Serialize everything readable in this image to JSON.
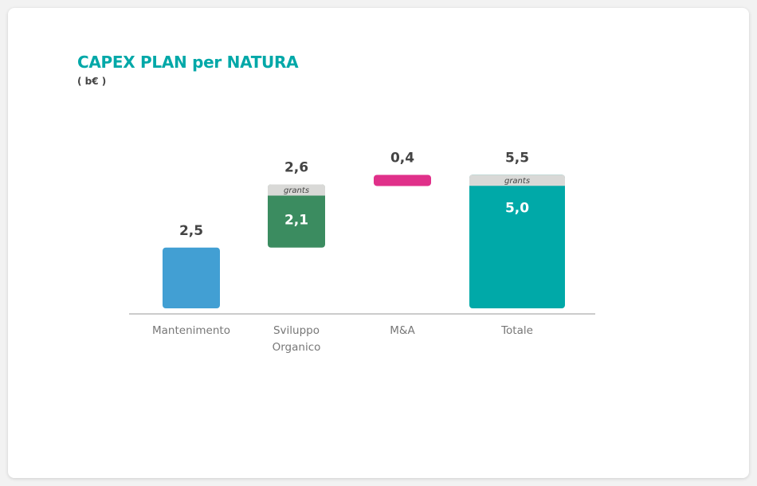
{
  "chart_data": {
    "type": "bar",
    "subtype": "waterfall",
    "title": "CAPEX PLAN per NATURA",
    "unit": "( b€ )",
    "categories": [
      "Mantenimento",
      "Sviluppo Organico",
      "M&A",
      "Totale"
    ],
    "category_lines": [
      [
        "Mantenimento"
      ],
      [
        "Sviluppo",
        "Organico"
      ],
      [
        "M&A"
      ],
      [
        "Totale"
      ]
    ],
    "bars": [
      {
        "category": "Mantenimento",
        "value": 2.5,
        "label": "2,5",
        "color": "#429fd3"
      },
      {
        "category": "Sviluppo Organico",
        "value": 2.6,
        "label": "2,6",
        "inner_value": 2.1,
        "inner_label": "2,1",
        "segment_label": "grants",
        "color": "#3b8c60"
      },
      {
        "category": "M&A",
        "value": 0.4,
        "label": "0,4",
        "color": "#e0308a"
      },
      {
        "category": "Totale",
        "value": 5.5,
        "label": "5,5",
        "inner_value": 5.0,
        "inner_label": "5,0",
        "segment_label": "grants",
        "color": "#00a9a8",
        "total": true
      }
    ],
    "grants_color": "#d9d9d7",
    "grid": false,
    "legend": "none"
  }
}
